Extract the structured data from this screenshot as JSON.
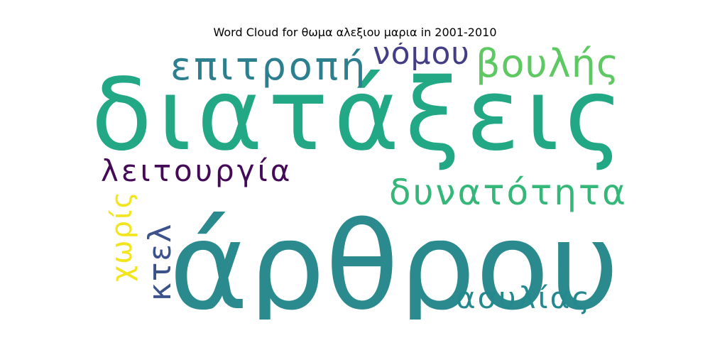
{
  "title": "Word Cloud for θωμα αλεξιου μαρια in 2001-2010",
  "words": [
    {
      "text": "διατάξεις",
      "color": "#22a884"
    },
    {
      "text": "άρθρου",
      "color": "#2a8a8d"
    },
    {
      "text": "επιτροπή",
      "color": "#2c7f8e"
    },
    {
      "text": "νόμου",
      "color": "#433e85"
    },
    {
      "text": "βουλής",
      "color": "#5ec962"
    },
    {
      "text": "λειτουργία",
      "color": "#440a58"
    },
    {
      "text": "δυνατότητα",
      "color": "#35b779"
    },
    {
      "text": "χωρίς",
      "color": "#f2e51d"
    },
    {
      "text": "κτελ",
      "color": "#3b528b"
    },
    {
      "text": "ασυλίας",
      "color": "#23898e"
    }
  ]
}
